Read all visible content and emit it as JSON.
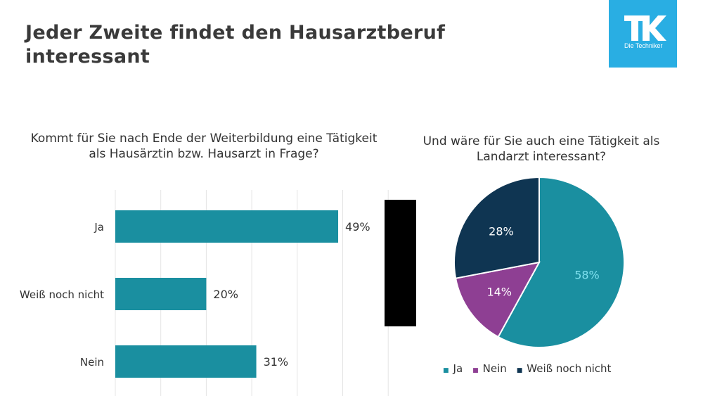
{
  "title": "Jeder Zweite findet den Hausarztberuf interessant",
  "logo": {
    "mark": "TK",
    "subtitle": "Die Techniker"
  },
  "colors": {
    "teal": "#1a8fa0",
    "purple": "#8e3f93",
    "navy": "#0f3552",
    "logo_blue": "#29aee3"
  },
  "chart_data": [
    {
      "type": "bar",
      "orientation": "horizontal",
      "title": "Kommt für Sie nach Ende der Weiterbildung eine Tätigkeit als Hausärztin bzw. Hausarzt in Frage?",
      "categories": [
        "Ja",
        "Weiß noch nicht",
        "Nein"
      ],
      "values": [
        49,
        20,
        31
      ],
      "value_labels": [
        "49%",
        "20%",
        "31%"
      ],
      "xlim": [
        0,
        60
      ],
      "grid": true,
      "legend": "none"
    },
    {
      "type": "pie",
      "title": "Und wäre für Sie auch eine Tätigkeit als Landarzt interessant?",
      "categories": [
        "Ja",
        "Nein",
        "Weiß noch nicht"
      ],
      "values": [
        58,
        14,
        28
      ],
      "value_labels": [
        "58%",
        "14%",
        "28%"
      ],
      "legend": "bottom"
    }
  ]
}
